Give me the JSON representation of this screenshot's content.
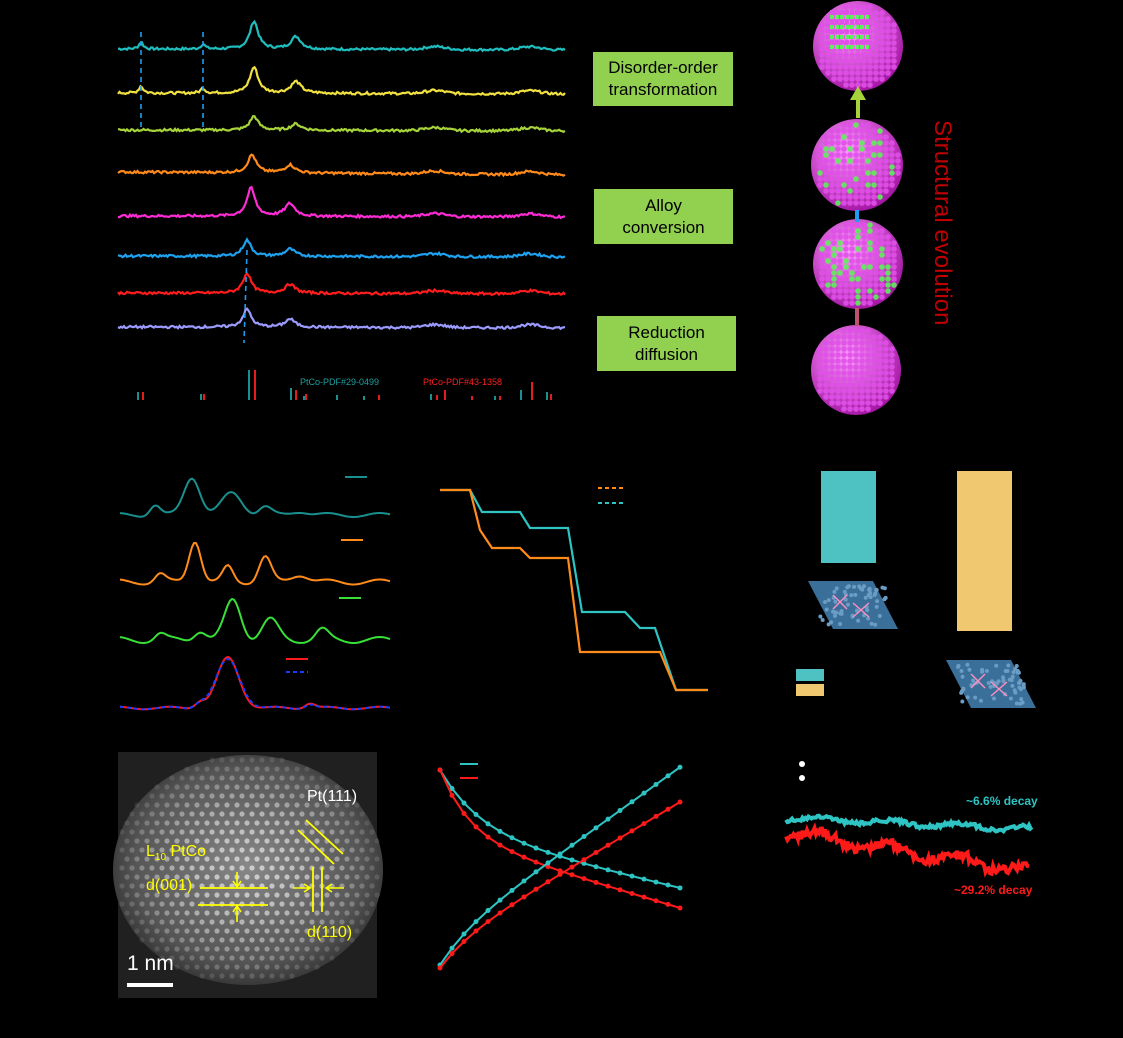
{
  "panel_a": {
    "boxes": [
      {
        "text": "Disorder-order transformation"
      },
      {
        "text": "Alloy conversion"
      },
      {
        "text": "Reduction diffusion"
      }
    ],
    "ref_labels": {
      "ptco_l10": "PtCo-PDF#29-0499",
      "ptco_fcc": "PtCo-PDF#43-1358"
    },
    "curve_colors": [
      "#1fbdbd",
      "#f0e040",
      "#a6d23a",
      "#ff8a1a",
      "#ff2bd4",
      "#1ea1ee",
      "#ff1c1c",
      "#9b9bff"
    ],
    "structural_evolution": "Structural evolution"
  },
  "panel_g": {
    "labels": {
      "pt111": "Pt(111)",
      "l10_prefix": "L",
      "l10_sub": "10",
      "l10_suffix": " PtCo",
      "d001": "d(001)",
      "d110": "d(110)",
      "scale": "1 nm"
    }
  },
  "panel_i": {
    "decay_top": "~6.6% decay",
    "decay_bottom": "~29.2% decay",
    "colors": {
      "teal": "#2ec4c4",
      "red": "#ff1a1a"
    }
  },
  "panel_e": {
    "colors": {
      "teal": "#2ec4c4",
      "orange": "#ff8c1a"
    }
  },
  "panel_f": {
    "colors": {
      "teal": "#4ec2c2",
      "gold": "#f0c870"
    }
  }
}
